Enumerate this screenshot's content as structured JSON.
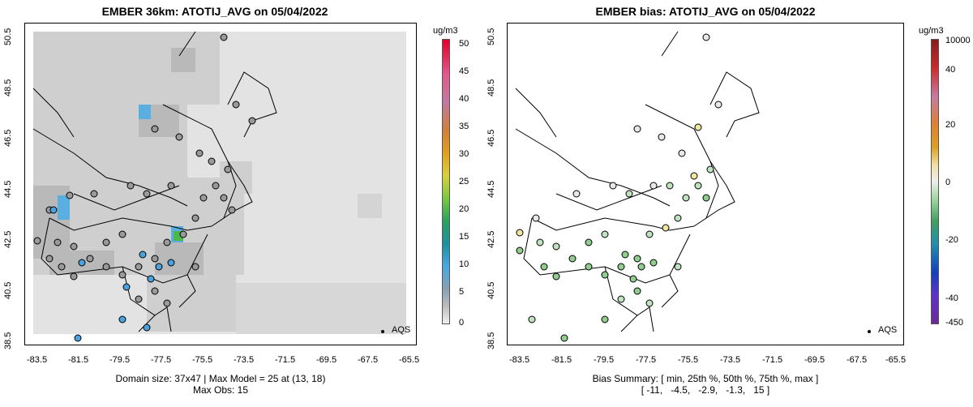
{
  "left_panel": {
    "title": "EMBER 36km: ATOTIJ_AVG on 05/04/2022",
    "footer_line1": "Domain size: 37x47 | Max Model = 25 at (13, 18)",
    "footer_line2": "Max Obs: 15",
    "legend_label": "AQS",
    "colorbar_unit": "ug/m3",
    "colorbar_ticks": [
      "50",
      "45",
      "40",
      "35",
      "30",
      "25",
      "20",
      "15",
      "10",
      "5",
      "0"
    ]
  },
  "right_panel": {
    "title": "EMBER bias: ATOTIJ_AVG on 05/04/2022",
    "footer_line1": "Bias Summary: [ min, 25th %, 50th %, 75th %, max ]",
    "footer_line2": "[ -11,   -4.5,   -2.9,   -1.3,   15 ]",
    "legend_label": "AQS",
    "colorbar_unit": "ug/m3",
    "colorbar_ticks": [
      "10000",
      "40",
      "20",
      "0",
      "-20",
      "-40",
      "-450"
    ]
  },
  "x_ticks": [
    "-83.5",
    "-81.5",
    "-79.5",
    "-77.5",
    "-75.5",
    "-73.5",
    "-71.5",
    "-69.5",
    "-67.5",
    "-65.5"
  ],
  "y_ticks": [
    "50.5",
    "48.5",
    "46.5",
    "44.5",
    "42.5",
    "40.5",
    "38.5"
  ],
  "colors": {
    "model_background": "#d9d9d9",
    "model_light": "#e6e6e6",
    "model_high": "#5aaee0",
    "model_peak": "#4cb84c",
    "obs_gray": "#9a9a9a",
    "obs_blue": "#4aa3df",
    "bias_green": "#8fce8f",
    "bias_lightgreen": "#bfe3bf",
    "bias_white": "#e8e8e8",
    "bias_yellow": "#f0e6a0"
  }
}
